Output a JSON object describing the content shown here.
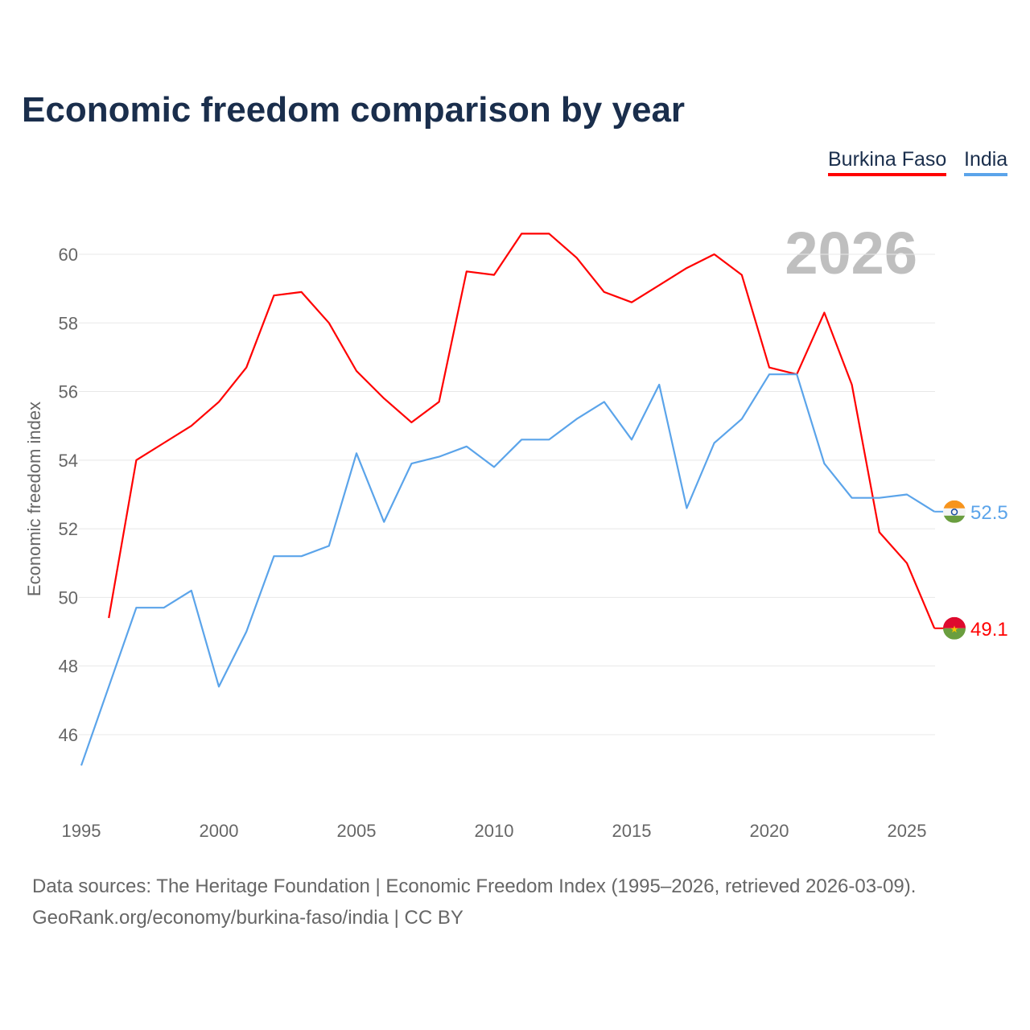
{
  "chart_data": {
    "type": "line",
    "title": "Economic freedom comparison by year",
    "ylabel": "Economic freedom index",
    "xlabel": "",
    "ylim": [
      44.5,
      61
    ],
    "xlim": [
      1995,
      2026
    ],
    "yticks": [
      46,
      48,
      50,
      52,
      54,
      56,
      58,
      60
    ],
    "xticks": [
      1995,
      2000,
      2005,
      2010,
      2015,
      2020,
      2025
    ],
    "grid": true,
    "legend_position": "top-right",
    "year_watermark": "2026",
    "series": [
      {
        "name": "Burkina Faso",
        "color": "#ff0000",
        "end_label": "49.1",
        "x": [
          1996,
          1997,
          1998,
          1999,
          2000,
          2001,
          2002,
          2003,
          2004,
          2005,
          2006,
          2007,
          2008,
          2009,
          2010,
          2011,
          2012,
          2013,
          2014,
          2015,
          2016,
          2017,
          2018,
          2019,
          2020,
          2021,
          2022,
          2023,
          2024,
          2025,
          2026
        ],
        "values": [
          49.4,
          54.0,
          54.5,
          55.0,
          55.7,
          56.7,
          58.8,
          58.9,
          58.0,
          56.6,
          55.8,
          55.1,
          55.7,
          59.5,
          59.4,
          60.6,
          60.6,
          59.9,
          58.9,
          58.6,
          59.1,
          59.6,
          60.0,
          59.4,
          56.7,
          56.5,
          58.3,
          56.2,
          51.9,
          51.0,
          49.1
        ]
      },
      {
        "name": "India",
        "color": "#5ba4ea",
        "end_label": "52.5",
        "x": [
          1995,
          1996,
          1997,
          1998,
          1999,
          2000,
          2001,
          2002,
          2003,
          2004,
          2005,
          2006,
          2007,
          2008,
          2009,
          2010,
          2011,
          2012,
          2013,
          2014,
          2015,
          2016,
          2017,
          2018,
          2019,
          2020,
          2021,
          2022,
          2023,
          2024,
          2025,
          2026
        ],
        "values": [
          45.1,
          47.4,
          49.7,
          49.7,
          50.2,
          47.4,
          49.0,
          51.2,
          51.2,
          51.5,
          54.2,
          52.2,
          53.9,
          54.1,
          54.4,
          53.8,
          54.6,
          54.6,
          55.2,
          55.7,
          54.6,
          56.2,
          52.6,
          54.5,
          55.2,
          56.5,
          56.5,
          53.9,
          52.9,
          52.9,
          53.0,
          52.5
        ]
      }
    ]
  },
  "footer": {
    "line1": "Data sources: The Heritage Foundation | Economic Freedom Index (1995–2026, retrieved 2026-03-09).",
    "line2": "GeoRank.org/economy/burkina-faso/india | CC BY"
  }
}
